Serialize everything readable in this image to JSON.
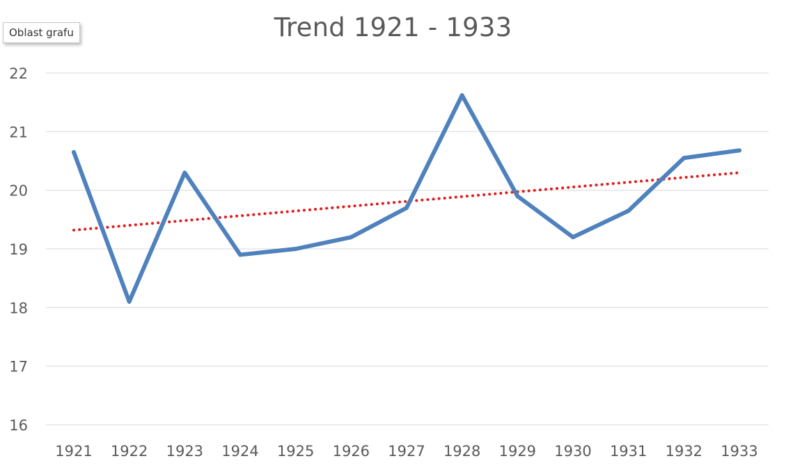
{
  "tooltip": {
    "label": "Oblast grafu"
  },
  "colors": {
    "series": "#4f81bd",
    "trendline": "#e31a1c",
    "grid": "#d9d9d9",
    "text": "#595959"
  },
  "chart_data": {
    "type": "line",
    "title": "Trend 1921 - 1933",
    "xlabel": "",
    "ylabel": "",
    "categories": [
      "1921",
      "1922",
      "1923",
      "1924",
      "1925",
      "1926",
      "1927",
      "1928",
      "1929",
      "1930",
      "1931",
      "1932",
      "1933"
    ],
    "series": [
      {
        "values": [
          20.65,
          18.1,
          20.3,
          18.9,
          19.0,
          19.2,
          19.7,
          21.62,
          19.9,
          19.2,
          19.65,
          20.55,
          20.68
        ]
      }
    ],
    "trendline": {
      "type": "linear",
      "style": "dotted",
      "start": 19.32,
      "end": 20.3
    },
    "ylim": [
      16,
      22
    ],
    "yticks": [
      "16",
      "17",
      "18",
      "19",
      "20",
      "21",
      "22"
    ],
    "grid": true,
    "legend": "none"
  }
}
